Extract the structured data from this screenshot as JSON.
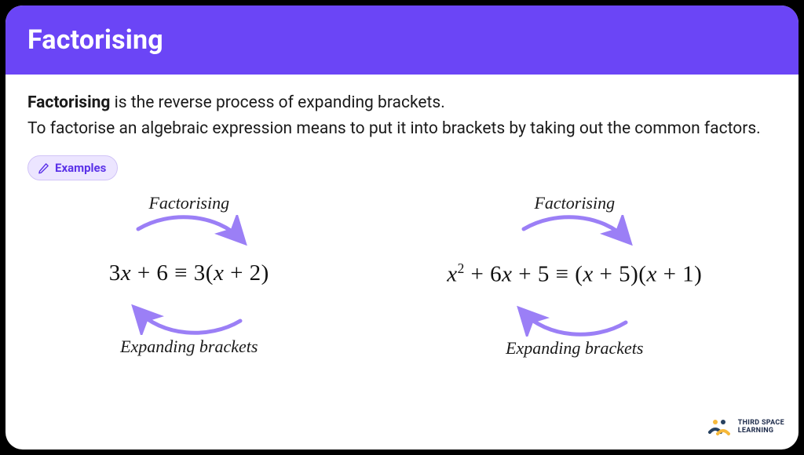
{
  "colors": {
    "header_bg": "#6b45f6",
    "chip_bg": "#ece5ff",
    "chip_fg": "#5b32e8",
    "chip_border": "#d1c4f7",
    "arrow_stroke": "#9b7ff6",
    "logo_primary": "#274160",
    "logo_accent": "#f6b93b"
  },
  "header": {
    "title": "Factorising"
  },
  "intro": {
    "lead_bold": "Factorising",
    "line1_rest": " is the reverse process of expanding brackets.",
    "line2": "To factorise an algebraic expression means to put it into brackets by taking out the common factors."
  },
  "chip": {
    "icon": "pencil-icon",
    "label": "Examples"
  },
  "examples": [
    {
      "top_label": "Factorising",
      "formula_html": "3<span class='x'>x</span> + 6 ≡ 3(<span class='x'>x</span> + 2)",
      "bottom_label": "Expanding brackets"
    },
    {
      "top_label": "Factorising",
      "formula_html": "<span class='x'>x</span><sup>2</sup> + 6<span class='x'>x</span> + 5 ≡ (<span class='x'>x</span> + 5)(<span class='x'>x</span> + 1)",
      "bottom_label": "Expanding brackets"
    }
  ],
  "logo": {
    "line1": "THIRD SPACE",
    "line2": "LEARNING"
  }
}
